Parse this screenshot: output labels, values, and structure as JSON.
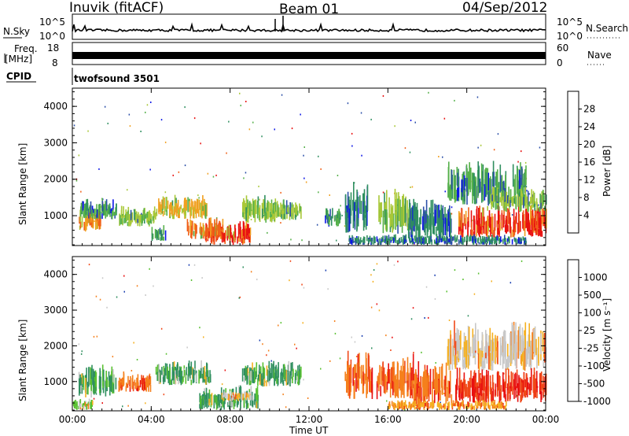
{
  "header": {
    "station": "Inuvik (fitACF)",
    "beam": "Beam 01",
    "date": "04/Sep/2012"
  },
  "status_panels": {
    "nsky_label": "N.Sky",
    "nsky_ticks": [
      "10^5",
      "10^0"
    ],
    "nsearch_label": "N.Search",
    "nsearch_ticks": [
      "10^5",
      "10^0"
    ],
    "freq_label": "Freq.",
    "freq_unit": "[MHz]",
    "freq_ticks": [
      "18",
      "8"
    ],
    "nave_label": "Nave",
    "nave_ticks": [
      "60",
      "0"
    ],
    "cpid_label": "CPID",
    "cpid_value": "twofsound 3501"
  },
  "colors": {
    "power_scale": [
      "#0a14e6",
      "#2b4fa8",
      "#2f8f5f",
      "#55b04a",
      "#a9c838",
      "#f0a020",
      "#f06018",
      "#e81010"
    ],
    "velocity_scale": [
      "#e81010",
      "#f04818",
      "#f5801c",
      "#f5b020",
      "#c8c8c8",
      "#58c030",
      "#2f8f5f",
      "#1a3fb0"
    ]
  },
  "chart_data": [
    {
      "type": "heatmap",
      "name": "power-panel",
      "ylabel": "Slant Range [km]",
      "xlabel": "",
      "x_ticks": [
        "00:00",
        "04:00",
        "08:00",
        "12:00",
        "16:00",
        "20:00",
        "00:00"
      ],
      "xlim_hours": [
        0,
        24
      ],
      "ylim_km": [
        180,
        4500
      ],
      "y_ticks": [
        1000,
        2000,
        3000,
        4000
      ],
      "colorbar": {
        "label": "Power [dB]",
        "ticks": [
          "28",
          "24",
          "20",
          "16",
          "12",
          "8",
          "4"
        ]
      },
      "blobs": [
        {
          "t0": 0.3,
          "t1": 1.4,
          "r0": 550,
          "r1": 1100,
          "level": 6
        },
        {
          "t0": 0.4,
          "t1": 2.2,
          "r0": 900,
          "r1": 1400,
          "level": 3
        },
        {
          "t0": 2.3,
          "t1": 4.2,
          "r0": 700,
          "r1": 1200,
          "level": 4
        },
        {
          "t0": 4.0,
          "t1": 4.7,
          "r0": 300,
          "r1": 700,
          "level": 3
        },
        {
          "t0": 4.2,
          "t1": 6.8,
          "r0": 900,
          "r1": 1500,
          "level": 5
        },
        {
          "t0": 6.6,
          "t1": 9.0,
          "r0": 200,
          "r1": 800,
          "level": 7
        },
        {
          "t0": 5.8,
          "t1": 7.6,
          "r0": 350,
          "r1": 900,
          "level": 6
        },
        {
          "t0": 8.6,
          "t1": 10.4,
          "r0": 800,
          "r1": 1500,
          "level": 4
        },
        {
          "t0": 10.0,
          "t1": 11.6,
          "r0": 850,
          "r1": 1450,
          "level": 4
        },
        {
          "t0": 12.8,
          "t1": 13.6,
          "r0": 700,
          "r1": 1200,
          "level": 3
        },
        {
          "t0": 13.8,
          "t1": 15.0,
          "r0": 500,
          "r1": 1800,
          "level": 2
        },
        {
          "t0": 15.5,
          "t1": 17.2,
          "r0": 500,
          "r1": 1600,
          "level": 4
        },
        {
          "t0": 17.0,
          "t1": 19.2,
          "r0": 300,
          "r1": 1400,
          "level": 2
        },
        {
          "t0": 19.0,
          "t1": 23.0,
          "r0": 1300,
          "r1": 2400,
          "level": 3
        },
        {
          "t0": 19.5,
          "t1": 24.0,
          "r0": 400,
          "r1": 1200,
          "level": 7
        },
        {
          "t0": 21.0,
          "t1": 24.0,
          "r0": 1100,
          "r1": 1700,
          "level": 4
        },
        {
          "t0": 14.0,
          "t1": 23.0,
          "r0": 200,
          "r1": 450,
          "level": 2
        }
      ]
    },
    {
      "type": "heatmap",
      "name": "velocity-panel",
      "ylabel": "Slant Range [km]",
      "xlabel": "Time UT",
      "x_ticks": [
        "00:00",
        "04:00",
        "08:00",
        "12:00",
        "16:00",
        "20:00",
        "00:00"
      ],
      "xlim_hours": [
        0,
        24
      ],
      "ylim_km": [
        180,
        4500
      ],
      "y_ticks": [
        1000,
        2000,
        3000,
        4000
      ],
      "colorbar": {
        "label": "Velocity [m s⁻¹]",
        "ticks": [
          "1000",
          "500",
          "100",
          "25",
          "-25",
          "-100",
          "-500",
          "-1000"
        ]
      },
      "blobs": [
        {
          "t0": 0.3,
          "t1": 2.2,
          "r0": 550,
          "r1": 1400,
          "level": 6
        },
        {
          "t0": 0.0,
          "t1": 1.0,
          "r0": 200,
          "r1": 500,
          "level": 5
        },
        {
          "t0": 2.3,
          "t1": 4.0,
          "r0": 700,
          "r1": 1200,
          "level": 2
        },
        {
          "t0": 4.2,
          "t1": 7.0,
          "r0": 900,
          "r1": 1500,
          "level": 6
        },
        {
          "t0": 6.4,
          "t1": 9.4,
          "r0": 200,
          "r1": 800,
          "level": 6
        },
        {
          "t0": 7.6,
          "t1": 9.0,
          "r0": 450,
          "r1": 700,
          "level": 4
        },
        {
          "t0": 8.6,
          "t1": 11.6,
          "r0": 850,
          "r1": 1500,
          "level": 6
        },
        {
          "t0": 13.8,
          "t1": 15.2,
          "r0": 500,
          "r1": 1800,
          "level": 2
        },
        {
          "t0": 15.4,
          "t1": 17.4,
          "r0": 500,
          "r1": 1600,
          "level": 2
        },
        {
          "t0": 17.2,
          "t1": 19.2,
          "r0": 300,
          "r1": 1400,
          "level": 2
        },
        {
          "t0": 19.0,
          "t1": 24.0,
          "r0": 1300,
          "r1": 2500,
          "level": 4
        },
        {
          "t0": 19.4,
          "t1": 24.0,
          "r0": 400,
          "r1": 1300,
          "level": 1
        },
        {
          "t0": 16.0,
          "t1": 22.0,
          "r0": 200,
          "r1": 450,
          "level": 3
        }
      ]
    }
  ]
}
